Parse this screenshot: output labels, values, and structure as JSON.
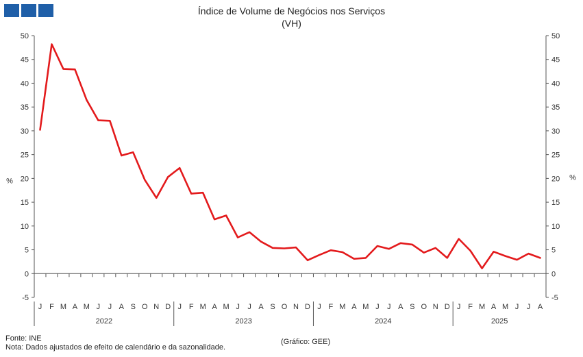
{
  "logo": {
    "color": "#1f5fa8",
    "blocks": 3
  },
  "title": "Índice de Volume de Negócios nos Serviços",
  "subtitle": "(VH)",
  "footer": {
    "source": "Fonte: INE",
    "note": "Nota: Dados ajustados de efeito de calendário e da sazonalidade.",
    "credit": "(Gráfico: GEE)"
  },
  "chart_data": {
    "type": "line",
    "ylabel_left": "%",
    "ylabel_right": "%",
    "ylim": [
      -5,
      50
    ],
    "yticks": [
      -5,
      0,
      5,
      10,
      15,
      20,
      25,
      30,
      35,
      40,
      45,
      50
    ],
    "grid": false,
    "line_color": "#e31a1c",
    "x": [
      "J",
      "F",
      "M",
      "A",
      "M",
      "J",
      "J",
      "A",
      "S",
      "O",
      "N",
      "D",
      "J",
      "F",
      "M",
      "A",
      "M",
      "J",
      "J",
      "A",
      "S",
      "O",
      "N",
      "D",
      "J",
      "F",
      "M",
      "A",
      "M",
      "J",
      "J",
      "A",
      "S",
      "O",
      "N",
      "D",
      "J",
      "F",
      "M",
      "A",
      "M",
      "J",
      "J",
      "A"
    ],
    "years": [
      {
        "label": "2022",
        "months": 12
      },
      {
        "label": "2023",
        "months": 12
      },
      {
        "label": "2024",
        "months": 12
      },
      {
        "label": "2025",
        "months": 8
      }
    ],
    "series": [
      {
        "values": [
          30.2,
          48.2,
          43.0,
          42.9,
          36.5,
          32.2,
          32.1,
          24.8,
          25.5,
          19.7,
          15.9,
          20.3,
          22.2,
          16.8,
          17.0,
          11.4,
          12.2,
          7.6,
          8.7,
          6.7,
          5.4,
          5.3,
          5.5,
          2.8,
          3.9,
          4.9,
          4.5,
          3.1,
          3.3,
          5.8,
          5.2,
          6.4,
          6.1,
          4.4,
          5.4,
          3.3,
          7.3,
          4.8,
          1.1,
          4.6,
          3.7,
          2.9,
          4.2,
          3.3
        ]
      }
    ]
  }
}
